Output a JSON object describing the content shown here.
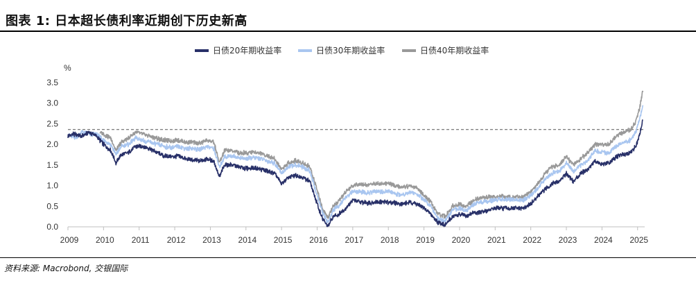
{
  "header": {
    "title": "图表 1: 日本超长债利率近期创下历史新高"
  },
  "footer": {
    "source": "资料来源: Macrobond, 交银国际"
  },
  "chart_data": {
    "type": "line",
    "title": "图表 1: 日本超长债利率近期创下历史新高",
    "ylabel": "%",
    "xlabel": "",
    "ylim": [
      0,
      3.5
    ],
    "xlim": [
      2009,
      2025.2
    ],
    "yticks": [
      "0.0",
      "0.5",
      "1.0",
      "1.5",
      "2.0",
      "2.5",
      "3.0",
      "3.5"
    ],
    "xticks": [
      "2009",
      "2010",
      "2011",
      "2012",
      "2013",
      "2014",
      "2015",
      "2016",
      "2017",
      "2018",
      "2019",
      "2020",
      "2021",
      "2022",
      "2023",
      "2024",
      "2025"
    ],
    "reference_line": {
      "y": 2.36,
      "style": "dashed",
      "color": "#555555"
    },
    "legend_position": "top",
    "series": [
      {
        "name": "日债20年期收益率",
        "color": "#283068",
        "x": [
          2009.0,
          2009.2,
          2009.4,
          2009.6,
          2009.8,
          2010.0,
          2010.2,
          2010.35,
          2010.5,
          2010.7,
          2010.9,
          2011.1,
          2011.3,
          2011.5,
          2011.7,
          2011.9,
          2012.1,
          2012.3,
          2012.5,
          2012.7,
          2012.9,
          2013.1,
          2013.25,
          2013.4,
          2013.6,
          2013.8,
          2014.0,
          2014.2,
          2014.4,
          2014.6,
          2014.8,
          2015.0,
          2015.2,
          2015.4,
          2015.6,
          2015.8,
          2016.0,
          2016.15,
          2016.3,
          2016.45,
          2016.6,
          2016.8,
          2017.0,
          2017.2,
          2017.4,
          2017.6,
          2017.8,
          2018.0,
          2018.2,
          2018.4,
          2018.6,
          2018.8,
          2019.0,
          2019.2,
          2019.4,
          2019.6,
          2019.8,
          2020.0,
          2020.2,
          2020.4,
          2020.6,
          2020.8,
          2021.0,
          2021.2,
          2021.4,
          2021.6,
          2021.8,
          2022.0,
          2022.2,
          2022.4,
          2022.6,
          2022.8,
          2023.0,
          2023.2,
          2023.4,
          2023.6,
          2023.8,
          2024.0,
          2024.2,
          2024.4,
          2024.6,
          2024.8,
          2024.95,
          2025.05,
          2025.15
        ],
        "values": [
          2.2,
          2.25,
          2.2,
          2.3,
          2.2,
          2.0,
          1.85,
          1.55,
          1.75,
          1.8,
          1.95,
          1.95,
          1.9,
          1.8,
          1.72,
          1.7,
          1.72,
          1.65,
          1.62,
          1.6,
          1.65,
          1.6,
          1.2,
          1.5,
          1.5,
          1.45,
          1.42,
          1.42,
          1.4,
          1.35,
          1.3,
          1.05,
          1.2,
          1.25,
          1.2,
          1.1,
          0.55,
          0.2,
          0.0,
          0.25,
          0.3,
          0.45,
          0.65,
          0.6,
          0.58,
          0.6,
          0.6,
          0.6,
          0.58,
          0.55,
          0.6,
          0.55,
          0.45,
          0.3,
          0.1,
          0.05,
          0.25,
          0.3,
          0.25,
          0.35,
          0.35,
          0.4,
          0.45,
          0.45,
          0.45,
          0.45,
          0.45,
          0.55,
          0.75,
          0.9,
          1.05,
          1.1,
          1.3,
          1.1,
          1.3,
          1.4,
          1.6,
          1.5,
          1.55,
          1.7,
          1.75,
          1.8,
          1.95,
          2.2,
          2.6
        ]
      },
      {
        "name": "日债30年期收益率",
        "color": "#a9c6f0",
        "x": [
          2009.0,
          2009.2,
          2009.4,
          2009.6,
          2009.8,
          2010.0,
          2010.2,
          2010.35,
          2010.5,
          2010.7,
          2010.9,
          2011.1,
          2011.3,
          2011.5,
          2011.7,
          2011.9,
          2012.1,
          2012.3,
          2012.5,
          2012.7,
          2012.9,
          2013.1,
          2013.25,
          2013.4,
          2013.6,
          2013.8,
          2014.0,
          2014.2,
          2014.4,
          2014.6,
          2014.8,
          2015.0,
          2015.2,
          2015.4,
          2015.6,
          2015.8,
          2016.0,
          2016.15,
          2016.3,
          2016.45,
          2016.6,
          2016.8,
          2017.0,
          2017.2,
          2017.4,
          2017.6,
          2017.8,
          2018.0,
          2018.2,
          2018.4,
          2018.6,
          2018.8,
          2019.0,
          2019.2,
          2019.4,
          2019.6,
          2019.8,
          2020.0,
          2020.2,
          2020.4,
          2020.6,
          2020.8,
          2021.0,
          2021.2,
          2021.4,
          2021.6,
          2021.8,
          2022.0,
          2022.2,
          2022.4,
          2022.6,
          2022.8,
          2023.0,
          2023.2,
          2023.4,
          2023.6,
          2023.8,
          2024.0,
          2024.2,
          2024.4,
          2024.6,
          2024.8,
          2024.95,
          2025.05,
          2025.15
        ],
        "values": [
          2.25,
          2.15,
          2.3,
          2.25,
          2.25,
          2.1,
          2.0,
          1.75,
          1.95,
          2.0,
          2.15,
          2.1,
          2.05,
          2.0,
          1.95,
          1.92,
          1.95,
          1.9,
          1.9,
          1.88,
          1.95,
          1.9,
          1.45,
          1.7,
          1.72,
          1.68,
          1.65,
          1.68,
          1.65,
          1.6,
          1.55,
          1.3,
          1.45,
          1.5,
          1.45,
          1.35,
          0.75,
          0.35,
          0.1,
          0.4,
          0.5,
          0.7,
          0.85,
          0.85,
          0.82,
          0.85,
          0.85,
          0.85,
          0.8,
          0.78,
          0.85,
          0.8,
          0.65,
          0.5,
          0.2,
          0.15,
          0.4,
          0.45,
          0.4,
          0.55,
          0.6,
          0.62,
          0.65,
          0.68,
          0.65,
          0.65,
          0.65,
          0.75,
          0.95,
          1.15,
          1.3,
          1.35,
          1.55,
          1.35,
          1.5,
          1.6,
          1.85,
          1.8,
          1.8,
          1.95,
          2.05,
          2.1,
          2.3,
          2.6,
          2.95
        ]
      },
      {
        "name": "日债40年期收益率",
        "color": "#999999",
        "x": [
          2009.9,
          2010.0,
          2010.2,
          2010.35,
          2010.5,
          2010.7,
          2010.9,
          2011.1,
          2011.3,
          2011.5,
          2011.7,
          2011.9,
          2012.1,
          2012.3,
          2012.5,
          2012.7,
          2012.9,
          2013.1,
          2013.25,
          2013.4,
          2013.6,
          2013.8,
          2014.0,
          2014.2,
          2014.4,
          2014.6,
          2014.8,
          2015.0,
          2015.2,
          2015.4,
          2015.6,
          2015.8,
          2016.0,
          2016.15,
          2016.3,
          2016.45,
          2016.6,
          2016.8,
          2017.0,
          2017.2,
          2017.4,
          2017.6,
          2017.8,
          2018.0,
          2018.2,
          2018.4,
          2018.6,
          2018.8,
          2019.0,
          2019.2,
          2019.4,
          2019.6,
          2019.8,
          2020.0,
          2020.2,
          2020.4,
          2020.6,
          2020.8,
          2021.0,
          2021.2,
          2021.4,
          2021.6,
          2021.8,
          2022.0,
          2022.2,
          2022.4,
          2022.6,
          2022.8,
          2023.0,
          2023.2,
          2023.4,
          2023.6,
          2023.8,
          2024.0,
          2024.2,
          2024.4,
          2024.6,
          2024.8,
          2024.95,
          2025.05,
          2025.15
        ],
        "values": [
          2.3,
          2.25,
          2.15,
          1.85,
          2.05,
          2.15,
          2.3,
          2.25,
          2.2,
          2.15,
          2.1,
          2.08,
          2.1,
          2.05,
          2.05,
          2.02,
          2.1,
          2.05,
          1.55,
          1.85,
          1.85,
          1.8,
          1.8,
          1.82,
          1.78,
          1.72,
          1.65,
          1.4,
          1.55,
          1.6,
          1.55,
          1.45,
          0.9,
          0.45,
          0.2,
          0.5,
          0.6,
          0.85,
          1.0,
          1.05,
          1.0,
          1.05,
          1.05,
          1.05,
          1.0,
          0.95,
          1.0,
          0.95,
          0.75,
          0.6,
          0.3,
          0.25,
          0.5,
          0.55,
          0.5,
          0.65,
          0.7,
          0.72,
          0.72,
          0.75,
          0.72,
          0.72,
          0.72,
          0.85,
          1.05,
          1.3,
          1.45,
          1.5,
          1.7,
          1.5,
          1.65,
          1.8,
          2.0,
          2.0,
          2.0,
          2.2,
          2.3,
          2.35,
          2.55,
          2.85,
          3.3
        ]
      }
    ]
  }
}
